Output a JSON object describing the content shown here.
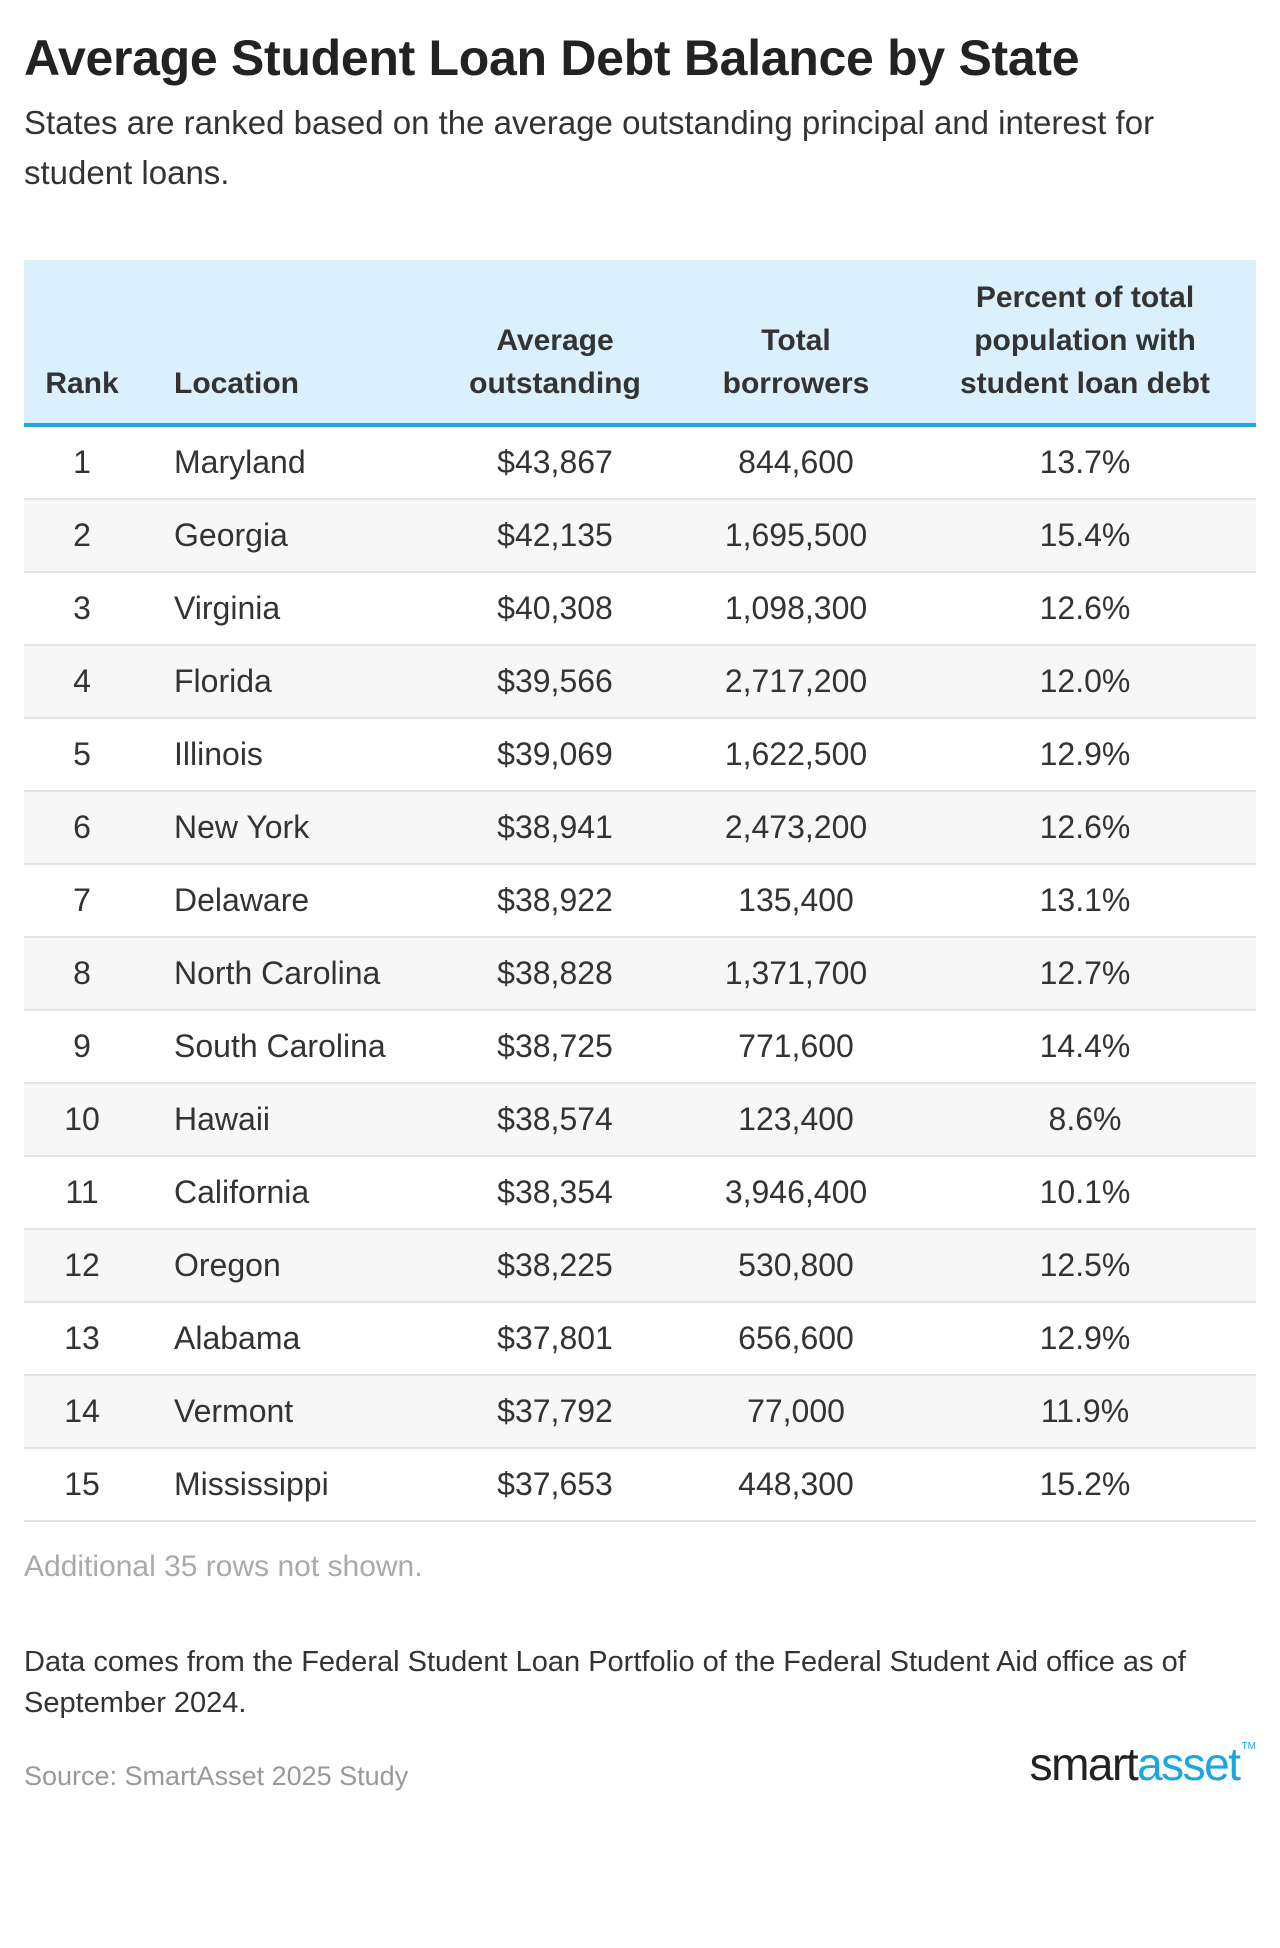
{
  "title": "Average Student Loan Debt Balance by State",
  "subtitle": "States are ranked based on the average outstanding principal and interest for student loans.",
  "table": {
    "headers": [
      "Rank",
      "Location",
      "Average outstanding",
      "Total borrowers",
      "Percent of total population with student loan debt"
    ],
    "rows": [
      [
        "1",
        "Maryland",
        "$43,867",
        "844,600",
        "13.7%"
      ],
      [
        "2",
        "Georgia",
        "$42,135",
        "1,695,500",
        "15.4%"
      ],
      [
        "3",
        "Virginia",
        "$40,308",
        "1,098,300",
        "12.6%"
      ],
      [
        "4",
        "Florida",
        "$39,566",
        "2,717,200",
        "12.0%"
      ],
      [
        "5",
        "Illinois",
        "$39,069",
        "1,622,500",
        "12.9%"
      ],
      [
        "6",
        "New York",
        "$38,941",
        "2,473,200",
        "12.6%"
      ],
      [
        "7",
        "Delaware",
        "$38,922",
        "135,400",
        "13.1%"
      ],
      [
        "8",
        "North Carolina",
        "$38,828",
        "1,371,700",
        "12.7%"
      ],
      [
        "9",
        "South Carolina",
        "$38,725",
        "771,600",
        "14.4%"
      ],
      [
        "10",
        "Hawaii",
        "$38,574",
        "123,400",
        "8.6%"
      ],
      [
        "11",
        "California",
        "$38,354",
        "3,946,400",
        "10.1%"
      ],
      [
        "12",
        "Oregon",
        "$38,225",
        "530,800",
        "12.5%"
      ],
      [
        "13",
        "Alabama",
        "$37,801",
        "656,600",
        "12.9%"
      ],
      [
        "14",
        "Vermont",
        "$37,792",
        "77,000",
        "11.9%"
      ],
      [
        "15",
        "Mississippi",
        "$37,653",
        "448,300",
        "15.2%"
      ]
    ]
  },
  "more_rows": "Additional 35 rows not shown.",
  "note": "Data comes from the Federal Student Loan Portfolio of the Federal Student Aid office as of September 2024.",
  "source": "Source: SmartAsset 2025 Study",
  "logo": {
    "part1": "smart",
    "part2": "asset",
    "tm": "TM"
  },
  "colors": {
    "header_bg": "#dbf0fd",
    "accent": "#26a4e0",
    "zebra": "#f7f7f7"
  }
}
